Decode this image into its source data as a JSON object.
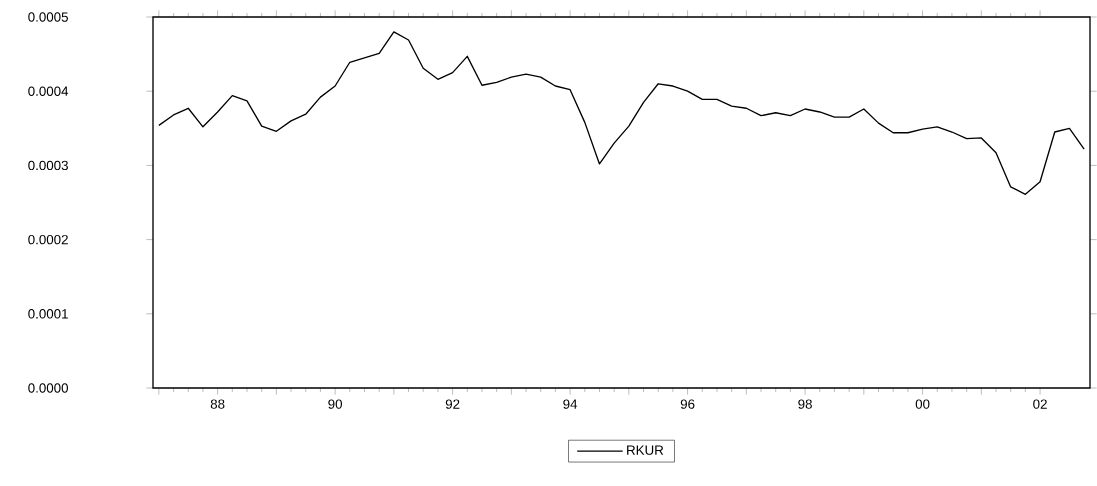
{
  "chart_data": {
    "type": "line",
    "x": [
      1987,
      1987.25,
      1987.5,
      1987.75,
      1988,
      1988.25,
      1988.5,
      1988.75,
      1989,
      1989.25,
      1989.5,
      1989.75,
      1990,
      1990.25,
      1990.5,
      1990.75,
      1991,
      1991.25,
      1991.5,
      1991.75,
      1992,
      1992.25,
      1992.5,
      1992.75,
      1993,
      1993.25,
      1993.5,
      1993.75,
      1994,
      1994.25,
      1994.5,
      1994.75,
      1995,
      1995.25,
      1995.5,
      1995.75,
      1996,
      1996.25,
      1996.5,
      1996.75,
      1997,
      1997.25,
      1997.5,
      1997.75,
      1998,
      1998.25,
      1998.5,
      1998.75,
      1999,
      1999.25,
      1999.5,
      1999.75,
      2000,
      2000.25,
      2000.5,
      2000.75,
      2001,
      2001.25,
      2001.5,
      2001.75,
      2002,
      2002.25,
      2002.5,
      2002.75
    ],
    "series": [
      {
        "name": "RKUR",
        "color": "#000000",
        "values": [
          0.000354,
          0.000368,
          0.000377,
          0.000352,
          0.000372,
          0.000394,
          0.000387,
          0.000353,
          0.000346,
          0.00036,
          0.000369,
          0.000392,
          0.000407,
          0.000439,
          0.000445,
          0.000451,
          0.00048,
          0.000469,
          0.000431,
          0.000416,
          0.000425,
          0.000447,
          0.000408,
          0.000412,
          0.000419,
          0.000423,
          0.000419,
          0.000407,
          0.000402,
          0.000358,
          0.000302,
          0.00033,
          0.000353,
          0.000385,
          0.00041,
          0.000407,
          0.0004,
          0.000389,
          0.000389,
          0.00038,
          0.000377,
          0.000367,
          0.000371,
          0.000367,
          0.000376,
          0.000372,
          0.000365,
          0.000365,
          0.000376,
          0.000357,
          0.000344,
          0.000344,
          0.000349,
          0.000352,
          0.000345,
          0.000336,
          0.000337,
          0.000317,
          0.000271,
          0.000261,
          0.000278,
          0.000345,
          0.00035,
          0.000322
        ]
      }
    ],
    "xlim": [
      1986.9,
      2002.85
    ],
    "xticks": [
      {
        "value": 1987,
        "label": null
      },
      {
        "value": 1988,
        "label": "88"
      },
      {
        "value": 1989,
        "label": null
      },
      {
        "value": 1990,
        "label": "90"
      },
      {
        "value": 1991,
        "label": null
      },
      {
        "value": 1992,
        "label": "92"
      },
      {
        "value": 1993,
        "label": null
      },
      {
        "value": 1994,
        "label": "94"
      },
      {
        "value": 1995,
        "label": null
      },
      {
        "value": 1996,
        "label": "96"
      },
      {
        "value": 1997,
        "label": null
      },
      {
        "value": 1998,
        "label": "98"
      },
      {
        "value": 1999,
        "label": null
      },
      {
        "value": 2000,
        "label": "00"
      },
      {
        "value": 2001,
        "label": null
      },
      {
        "value": 2002,
        "label": "02"
      }
    ],
    "ylim": [
      0,
      0.0005
    ],
    "yticks": [
      {
        "value": 0,
        "label": "0.0000"
      },
      {
        "value": 0.0001,
        "label": "0.0001"
      },
      {
        "value": 0.0002,
        "label": "0.0002"
      },
      {
        "value": 0.0003,
        "label": "0.0003"
      },
      {
        "value": 0.0004,
        "label": "0.0004"
      },
      {
        "value": 0.0005,
        "label": "0.0005"
      }
    ],
    "legend": "bottom",
    "grid": false,
    "marker": "none",
    "line_style": "solid"
  }
}
